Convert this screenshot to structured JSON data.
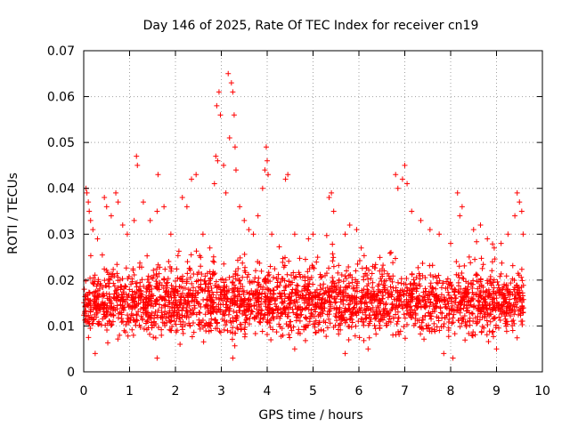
{
  "chart_data": {
    "type": "scatter",
    "title": "Day 146 of 2025, Rate Of TEC Index for receiver cn19",
    "xlabel": "GPS time / hours",
    "ylabel": "ROTI / TECUs",
    "xlim": [
      0,
      10
    ],
    "ylim": [
      0,
      0.07
    ],
    "xticks": [
      "0",
      "1",
      "2",
      "3",
      "4",
      "5",
      "6",
      "7",
      "8",
      "9",
      "10"
    ],
    "yticks": [
      "0",
      "0.01",
      "0.02",
      "0.03",
      "0.04",
      "0.05",
      "0.06",
      "0.07"
    ],
    "grid": true,
    "marker": "+",
    "color": "#ff0000",
    "x_range_of_data": [
      0.0,
      9.6
    ],
    "typical_band": [
      0.005,
      0.025
    ],
    "series": [
      {
        "name": "ROTI",
        "points": [
          [
            0.05,
            0.04
          ],
          [
            0.07,
            0.039
          ],
          [
            0.1,
            0.037
          ],
          [
            0.12,
            0.035
          ],
          [
            0.15,
            0.033
          ],
          [
            0.2,
            0.031
          ],
          [
            0.3,
            0.029
          ],
          [
            0.45,
            0.038
          ],
          [
            0.5,
            0.036
          ],
          [
            0.6,
            0.034
          ],
          [
            0.7,
            0.039
          ],
          [
            0.75,
            0.037
          ],
          [
            0.85,
            0.032
          ],
          [
            0.95,
            0.03
          ],
          [
            1.1,
            0.033
          ],
          [
            1.15,
            0.047
          ],
          [
            1.17,
            0.045
          ],
          [
            1.3,
            0.037
          ],
          [
            1.45,
            0.033
          ],
          [
            1.6,
            0.035
          ],
          [
            1.62,
            0.043
          ],
          [
            1.75,
            0.036
          ],
          [
            1.9,
            0.03
          ],
          [
            2.15,
            0.038
          ],
          [
            2.25,
            0.036
          ],
          [
            2.35,
            0.042
          ],
          [
            2.45,
            0.043
          ],
          [
            2.6,
            0.03
          ],
          [
            2.75,
            0.027
          ],
          [
            2.85,
            0.041
          ],
          [
            2.88,
            0.047
          ],
          [
            2.9,
            0.058
          ],
          [
            2.92,
            0.046
          ],
          [
            2.95,
            0.061
          ],
          [
            2.98,
            0.056
          ],
          [
            3.05,
            0.045
          ],
          [
            3.1,
            0.039
          ],
          [
            3.15,
            0.065
          ],
          [
            3.18,
            0.051
          ],
          [
            3.22,
            0.063
          ],
          [
            3.25,
            0.061
          ],
          [
            3.28,
            0.056
          ],
          [
            3.3,
            0.049
          ],
          [
            3.32,
            0.044
          ],
          [
            3.4,
            0.036
          ],
          [
            3.5,
            0.033
          ],
          [
            3.6,
            0.031
          ],
          [
            3.7,
            0.03
          ],
          [
            3.8,
            0.034
          ],
          [
            3.9,
            0.04
          ],
          [
            3.95,
            0.044
          ],
          [
            3.98,
            0.049
          ],
          [
            4.0,
            0.046
          ],
          [
            4.02,
            0.043
          ],
          [
            4.1,
            0.03
          ],
          [
            4.4,
            0.042
          ],
          [
            4.45,
            0.043
          ],
          [
            4.6,
            0.03
          ],
          [
            4.9,
            0.029
          ],
          [
            5.0,
            0.03
          ],
          [
            5.1,
            0.025
          ],
          [
            5.35,
            0.038
          ],
          [
            5.4,
            0.039
          ],
          [
            5.45,
            0.035
          ],
          [
            5.7,
            0.03
          ],
          [
            5.8,
            0.032
          ],
          [
            5.95,
            0.031
          ],
          [
            6.05,
            0.027
          ],
          [
            6.3,
            0.023
          ],
          [
            6.55,
            0.022
          ],
          [
            6.7,
            0.026
          ],
          [
            6.8,
            0.043
          ],
          [
            6.85,
            0.04
          ],
          [
            6.95,
            0.042
          ],
          [
            7.0,
            0.045
          ],
          [
            7.05,
            0.041
          ],
          [
            7.15,
            0.035
          ],
          [
            7.35,
            0.033
          ],
          [
            7.55,
            0.031
          ],
          [
            7.75,
            0.03
          ],
          [
            8.0,
            0.028
          ],
          [
            8.15,
            0.039
          ],
          [
            8.2,
            0.034
          ],
          [
            8.25,
            0.036
          ],
          [
            8.5,
            0.031
          ],
          [
            8.65,
            0.032
          ],
          [
            8.8,
            0.029
          ],
          [
            8.95,
            0.027
          ],
          [
            9.1,
            0.028
          ],
          [
            9.25,
            0.03
          ],
          [
            9.4,
            0.034
          ],
          [
            9.45,
            0.039
          ],
          [
            9.5,
            0.037
          ],
          [
            9.55,
            0.035
          ],
          [
            9.58,
            0.03
          ],
          [
            0.25,
            0.004
          ],
          [
            1.6,
            0.003
          ],
          [
            3.25,
            0.003
          ],
          [
            5.7,
            0.004
          ],
          [
            7.85,
            0.004
          ],
          [
            8.05,
            0.003
          ],
          [
            9.0,
            0.005
          ],
          [
            4.6,
            0.005
          ],
          [
            6.2,
            0.005
          ],
          [
            2.1,
            0.006
          ]
        ]
      }
    ]
  }
}
